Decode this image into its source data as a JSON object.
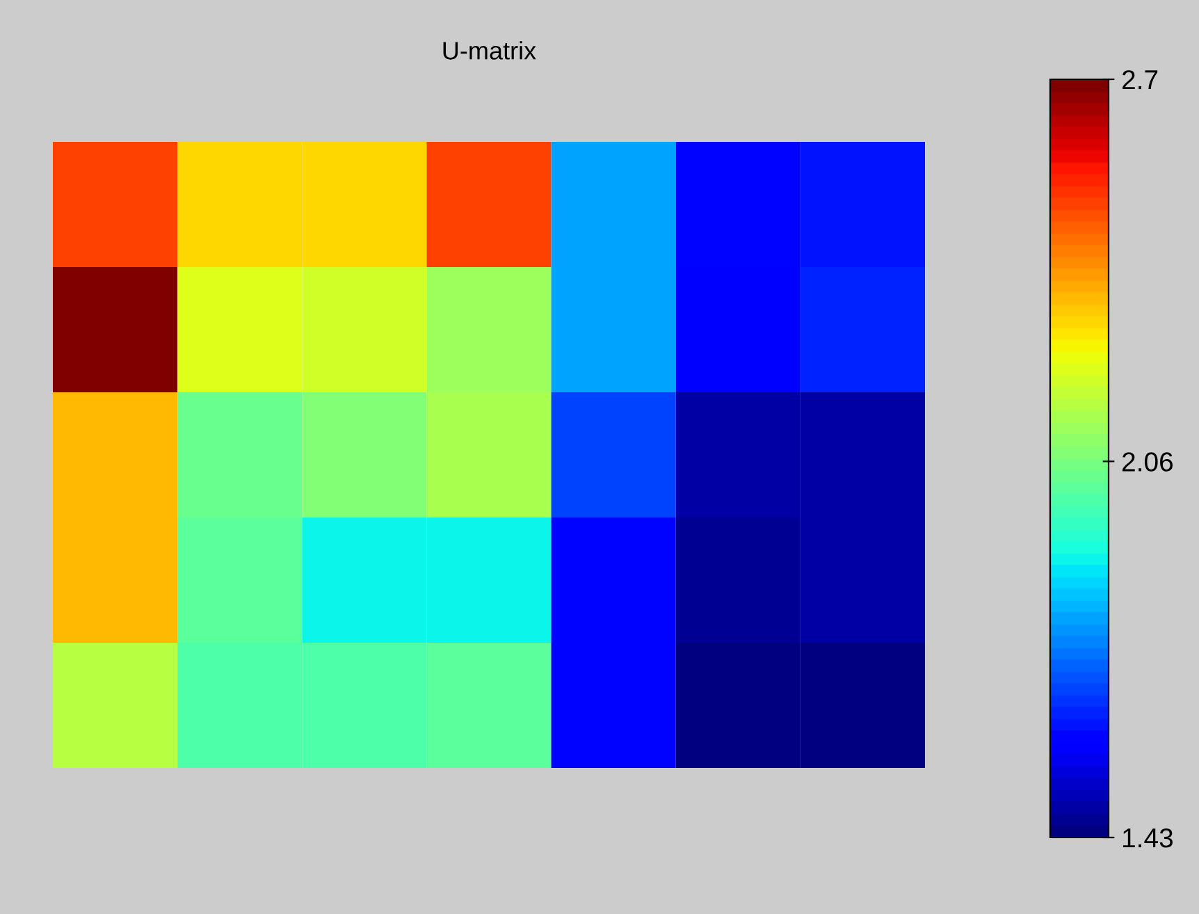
{
  "chart_data": {
    "type": "heatmap",
    "title": "U-matrix",
    "categories": [
      null,
      null,
      null,
      null,
      null,
      null,
      null
    ],
    "y_categories": [
      null,
      null,
      null,
      null,
      null
    ],
    "cells": [
      [
        2.5,
        2.29,
        2.29,
        2.5,
        1.79,
        1.59,
        1.61
      ],
      [
        2.7,
        2.22,
        2.19,
        2.12,
        1.79,
        1.57,
        1.63
      ],
      [
        2.34,
        2.03,
        2.08,
        2.14,
        1.68,
        1.47,
        1.47
      ],
      [
        2.34,
        2.01,
        1.89,
        1.89,
        1.59,
        1.45,
        1.47
      ],
      [
        2.16,
        1.99,
        1.99,
        2.01,
        1.59,
        1.44,
        1.44
      ]
    ],
    "clim": [
      1.43,
      2.7
    ],
    "cticks": [
      1.43,
      2.06,
      2.7
    ],
    "tick_labels": false
  }
}
